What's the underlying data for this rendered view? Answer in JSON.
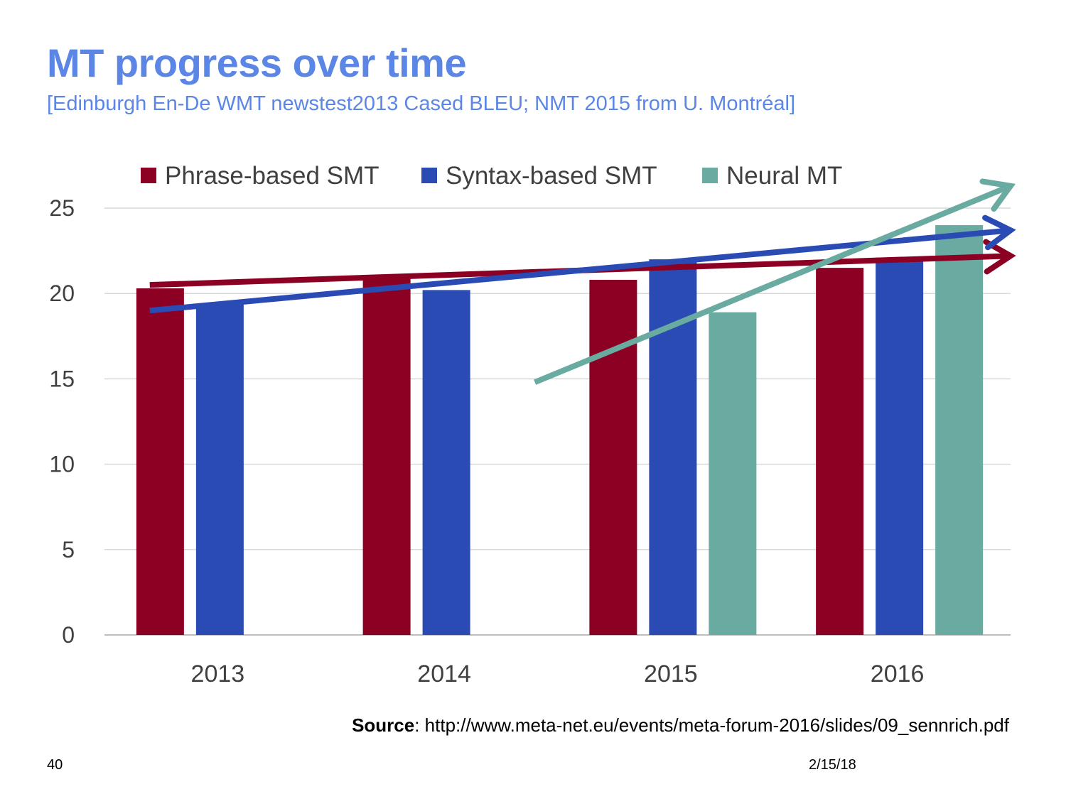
{
  "slide": {
    "title": "MT progress over time",
    "subtitle": "[Edinburgh En-De WMT newstest2013 Cased BLEU; NMT 2015 from U. Montréal]",
    "source_label": "Source",
    "source_text": ": http://www.meta-net.eu/events/meta-forum-2016/slides/09_sennrich.pdf",
    "page_number": "40",
    "date": "2/15/18"
  },
  "chart_data": {
    "type": "bar",
    "title": "",
    "xlabel": "",
    "ylabel": "",
    "categories": [
      "2013",
      "2014",
      "2015",
      "2016"
    ],
    "ylim": [
      0,
      25
    ],
    "yticks": [
      0,
      5,
      10,
      15,
      20,
      25
    ],
    "grid": true,
    "legend_position": "top",
    "series": [
      {
        "name": "Phrase-based SMT",
        "color": "#8b0023",
        "values": [
          20.3,
          20.9,
          20.8,
          21.5
        ]
      },
      {
        "name": "Syntax-based SMT",
        "color": "#2a4bb3",
        "values": [
          19.4,
          20.2,
          22.0,
          22.1
        ]
      },
      {
        "name": "Neural MT",
        "color": "#6aaba1",
        "values": [
          null,
          null,
          18.9,
          24.0
        ]
      }
    ],
    "trend_arrows": [
      {
        "series": "Phrase-based SMT",
        "color": "#8b0023",
        "from": [
          2012.7,
          20.5
        ],
        "to": [
          2016.5,
          22.2
        ]
      },
      {
        "series": "Syntax-based SMT",
        "color": "#2a4bb3",
        "from": [
          2012.7,
          19.0
        ],
        "to": [
          2016.5,
          23.7
        ]
      },
      {
        "series": "Neural MT",
        "color": "#6aaba1",
        "from": [
          2014.4,
          14.8
        ],
        "to": [
          2016.5,
          26.3
        ]
      }
    ]
  }
}
